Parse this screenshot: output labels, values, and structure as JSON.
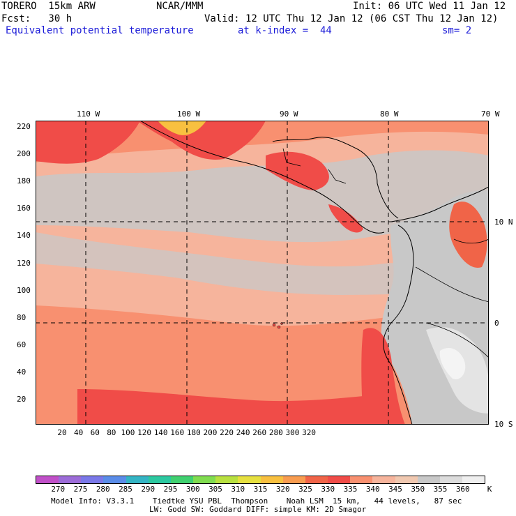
{
  "header": {
    "model": "TORERO  15km ARW",
    "center": "NCAR/MMM",
    "init": "Init: 06 UTC Wed 11 Jan 12",
    "fcst": "Fcst:   30 h",
    "valid": "Valid: 12 UTC Thu 12 Jan 12 (06 CST Thu 12 Jan 12)",
    "field": "Equivalent potential temperature",
    "level": "at k-index =  44",
    "smooth": "sm= 2"
  },
  "axes": {
    "lon_labels": [
      "110 W",
      "100 W",
      "90 W",
      "80 W",
      "70 W"
    ],
    "lat_labels_right": [
      "10 N",
      "0",
      "10 S"
    ],
    "y_ticks": [
      "220",
      "200",
      "180",
      "160",
      "140",
      "120",
      "100",
      "80",
      "60",
      "40",
      "20"
    ],
    "x_ticks": [
      "20",
      "40",
      "60",
      "80",
      "100",
      "120",
      "140",
      "160",
      "180",
      "200",
      "220",
      "240",
      "260",
      "280",
      "300",
      "320"
    ]
  },
  "colorbar": {
    "labels": [
      "270",
      "275",
      "280",
      "285",
      "290",
      "295",
      "300",
      "305",
      "310",
      "315",
      "320",
      "325",
      "330",
      "335",
      "340",
      "345",
      "350",
      "355",
      "360"
    ],
    "unit": "K",
    "colors": [
      "#c050c8",
      "#9c6cd8",
      "#7a78e8",
      "#5a8ce8",
      "#34b4c4",
      "#2cc8a0",
      "#40d070",
      "#80dc50",
      "#b8e040",
      "#e6e040",
      "#f8c040",
      "#f89c50",
      "#f06448",
      "#f04c48",
      "#f89070",
      "#f6b49c",
      "#f0c8b0",
      "#c8c8c8",
      "#dcdcdc",
      "#efefef"
    ]
  },
  "footer": {
    "line1": "Model Info: V3.3.1    Tiedtke YSU PBL  Thompson    Noah LSM  15 km,   44 levels,   87 sec",
    "line2": "LW: Godd SW: Goddard DIFF: simple KM: 2D Smagor"
  }
}
